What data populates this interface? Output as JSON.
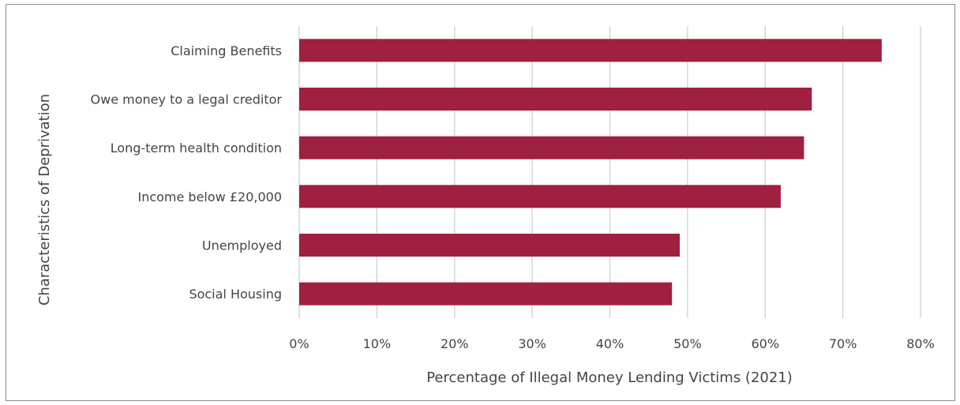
{
  "chart_data": {
    "type": "bar",
    "orientation": "horizontal",
    "title": "",
    "xlabel": "Percentage of Illegal Money Lending Victims (2021)",
    "ylabel": "Characteristics of Deprivation",
    "categories": [
      "Claiming Benefits",
      "Owe money to a legal creditor",
      "Long-term health condition",
      "Income below £20,000",
      "Unemployed",
      "Social Housing"
    ],
    "values": [
      75,
      66,
      65,
      62,
      49,
      48
    ],
    "xlim": [
      0,
      80
    ],
    "xticks": [
      "0%",
      "10%",
      "20%",
      "30%",
      "40%",
      "50%",
      "60%",
      "70%",
      "80%"
    ],
    "grid": "vertical",
    "bar_color": "#a0203f"
  }
}
